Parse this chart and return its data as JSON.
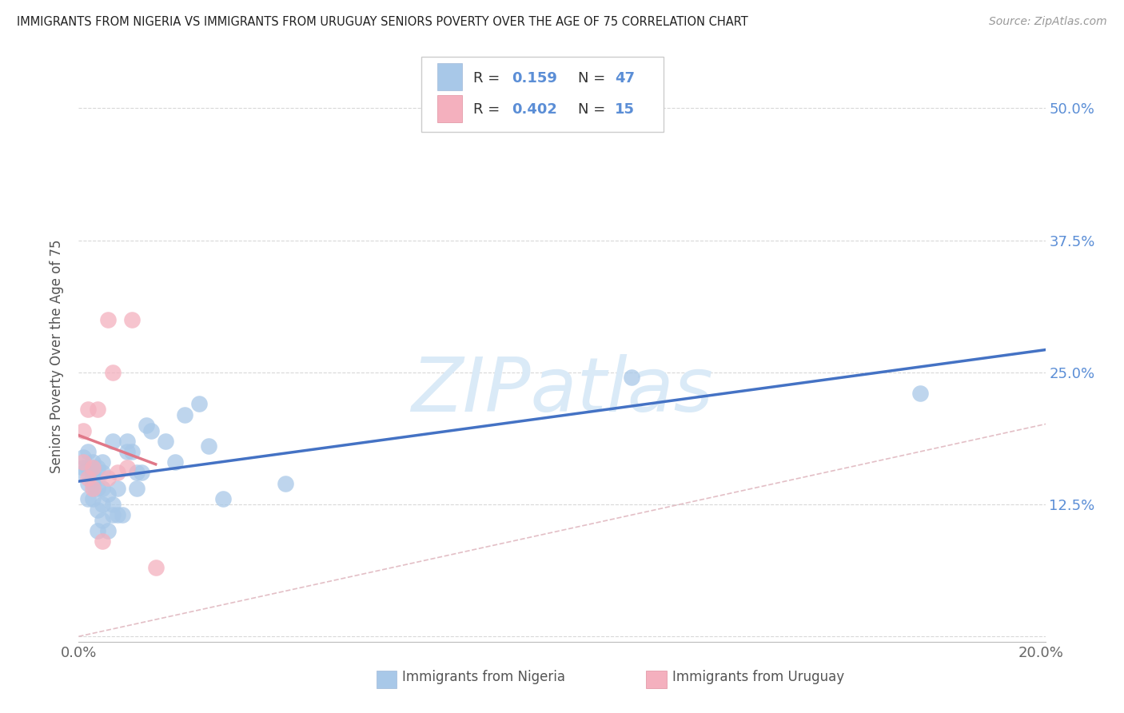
{
  "title": "IMMIGRANTS FROM NIGERIA VS IMMIGRANTS FROM URUGUAY SENIORS POVERTY OVER THE AGE OF 75 CORRELATION CHART",
  "source": "Source: ZipAtlas.com",
  "ylabel": "Seniors Poverty Over the Age of 75",
  "xlim": [
    0.0,
    0.201
  ],
  "ylim": [
    -0.005,
    0.535
  ],
  "xtick_positions": [
    0.0,
    0.05,
    0.1,
    0.15,
    0.2
  ],
  "xtick_labels": [
    "0.0%",
    "",
    "",
    "",
    "20.0%"
  ],
  "ytick_positions": [
    0.0,
    0.125,
    0.25,
    0.375,
    0.5
  ],
  "ytick_labels_right": [
    "",
    "12.5%",
    "25.0%",
    "37.5%",
    "50.0%"
  ],
  "nigeria_fill": "#a8c8e8",
  "uruguay_fill": "#f4b0be",
  "nigeria_line": "#4472c4",
  "uruguay_line": "#e07888",
  "diagonal_color": "#e0b8c0",
  "right_label_color": "#5b8ed6",
  "watermark_text": "ZIPatlas",
  "watermark_color": "#daeaf7",
  "nigeria_x": [
    0.001,
    0.001,
    0.001,
    0.002,
    0.002,
    0.002,
    0.002,
    0.003,
    0.003,
    0.003,
    0.003,
    0.003,
    0.003,
    0.004,
    0.004,
    0.004,
    0.004,
    0.005,
    0.005,
    0.005,
    0.005,
    0.005,
    0.006,
    0.006,
    0.007,
    0.007,
    0.007,
    0.008,
    0.008,
    0.009,
    0.01,
    0.01,
    0.011,
    0.012,
    0.012,
    0.013,
    0.014,
    0.015,
    0.018,
    0.02,
    0.022,
    0.025,
    0.027,
    0.03,
    0.043,
    0.115,
    0.175
  ],
  "nigeria_y": [
    0.155,
    0.16,
    0.17,
    0.13,
    0.145,
    0.16,
    0.175,
    0.13,
    0.145,
    0.15,
    0.155,
    0.16,
    0.165,
    0.1,
    0.12,
    0.14,
    0.16,
    0.11,
    0.125,
    0.14,
    0.155,
    0.165,
    0.1,
    0.135,
    0.115,
    0.125,
    0.185,
    0.115,
    0.14,
    0.115,
    0.175,
    0.185,
    0.175,
    0.14,
    0.155,
    0.155,
    0.2,
    0.195,
    0.185,
    0.165,
    0.21,
    0.22,
    0.18,
    0.13,
    0.145,
    0.245,
    0.23
  ],
  "uruguay_x": [
    0.001,
    0.001,
    0.002,
    0.002,
    0.003,
    0.003,
    0.004,
    0.005,
    0.006,
    0.006,
    0.007,
    0.008,
    0.01,
    0.011,
    0.016
  ],
  "uruguay_y": [
    0.165,
    0.195,
    0.15,
    0.215,
    0.14,
    0.16,
    0.215,
    0.09,
    0.15,
    0.3,
    0.25,
    0.155,
    0.16,
    0.3,
    0.065
  ],
  "nigeria_R": "0.159",
  "nigeria_N": "47",
  "uruguay_R": "0.402",
  "uruguay_N": "15"
}
